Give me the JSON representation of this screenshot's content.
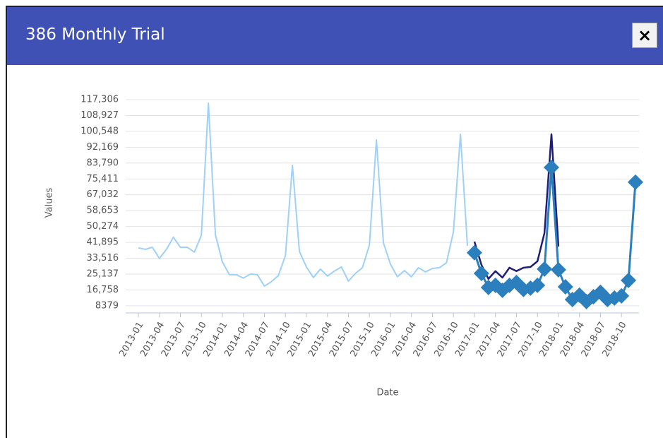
{
  "dialog": {
    "title": "386 Monthly Trial",
    "close": "×"
  },
  "chart_data": {
    "type": "line",
    "xlabel": "Date",
    "ylabel": "Values",
    "x": [
      "2013-01",
      null,
      null,
      "2013-04",
      null,
      null,
      "2013-07",
      null,
      null,
      "2013-10",
      null,
      null,
      "2014-01",
      null,
      null,
      "2014-04",
      null,
      null,
      "2014-07",
      null,
      null,
      "2014-10",
      null,
      null,
      "2015-01",
      null,
      null,
      "2015-04",
      null,
      null,
      "2015-07",
      null,
      null,
      "2015-10",
      null,
      null,
      "2016-01",
      null,
      null,
      "2016-04",
      null,
      null,
      "2016-07",
      null,
      null,
      "2016-10",
      null,
      null,
      "2017-01",
      null,
      null,
      "2017-04",
      null,
      null,
      "2017-07",
      null,
      null,
      "2017-10",
      null,
      null,
      "2018-01",
      null,
      null,
      "2018-04",
      null,
      null,
      "2018-07",
      null,
      null,
      "2018-10",
      null,
      null
    ],
    "series": [
      {
        "color": "#9fd0f7",
        "marker": "none",
        "width": 2,
        "values": [
          39000,
          38200,
          39300,
          33400,
          38200,
          44600,
          39300,
          39300,
          36700,
          45700,
          115400,
          46000,
          31500,
          24800,
          24800,
          23000,
          25200,
          24800,
          18800,
          21100,
          24400,
          34900,
          82600,
          37100,
          28900,
          23300,
          27800,
          24100,
          26700,
          28900,
          21400,
          25500,
          28500,
          40500,
          96000,
          41600,
          30400,
          23700,
          27000,
          23700,
          28500,
          26300,
          28100,
          28500,
          31100,
          47500,
          99000,
          40100,
          null,
          null,
          null,
          null,
          null,
          null,
          null,
          null,
          null,
          null,
          null,
          null,
          null,
          null,
          null,
          null,
          null,
          null,
          null,
          null,
          null,
          null,
          null,
          null
        ]
      },
      {
        "color": "#1e1e78",
        "marker": "none",
        "width": 2.5,
        "values": [
          null,
          null,
          null,
          null,
          null,
          null,
          null,
          null,
          null,
          null,
          null,
          null,
          null,
          null,
          null,
          null,
          null,
          null,
          null,
          null,
          null,
          null,
          null,
          null,
          null,
          null,
          null,
          null,
          null,
          null,
          null,
          null,
          null,
          null,
          null,
          null,
          null,
          null,
          null,
          null,
          null,
          null,
          null,
          null,
          null,
          null,
          null,
          null,
          42300,
          30000,
          22600,
          26700,
          23300,
          28500,
          26700,
          28500,
          28900,
          31900,
          46800,
          99000,
          39700,
          null,
          null,
          null,
          null,
          null,
          null,
          null,
          null,
          null,
          null,
          null
        ]
      },
      {
        "color": "#2b7fbd",
        "marker": "diamond",
        "width": 3,
        "values": [
          null,
          null,
          null,
          null,
          null,
          null,
          null,
          null,
          null,
          null,
          null,
          null,
          null,
          null,
          null,
          null,
          null,
          null,
          null,
          null,
          null,
          null,
          null,
          null,
          null,
          null,
          null,
          null,
          null,
          null,
          null,
          null,
          null,
          null,
          null,
          null,
          null,
          null,
          null,
          null,
          null,
          null,
          null,
          null,
          null,
          null,
          null,
          null,
          36400,
          25500,
          18100,
          19200,
          16600,
          19200,
          20700,
          17000,
          17700,
          19200,
          27800,
          81500,
          27400,
          18400,
          11700,
          14000,
          10600,
          13200,
          15500,
          11700,
          12500,
          13600,
          21800,
          73700
        ]
      }
    ],
    "ylim": [
      4600,
      117306
    ],
    "yticks": [
      8379,
      {
        "value": 16758,
        "label": "16,758"
      },
      {
        "value": 25137,
        "label": "25,137"
      },
      {
        "value": 33516,
        "label": "33,516"
      },
      {
        "value": 41895,
        "label": "41,895"
      },
      {
        "value": 50274,
        "label": "50,274"
      },
      {
        "value": 58653,
        "label": "58,653"
      },
      {
        "value": 67032,
        "label": "67,032"
      },
      {
        "value": 75411,
        "label": "75,411"
      },
      {
        "value": 83790,
        "label": "83,790"
      },
      {
        "value": 92169,
        "label": "92,169"
      },
      {
        "value": 100548,
        "label": "100,548"
      },
      {
        "value": 108927,
        "label": "108,927"
      },
      {
        "value": 117306,
        "label": "117,306"
      }
    ],
    "grid": true
  }
}
